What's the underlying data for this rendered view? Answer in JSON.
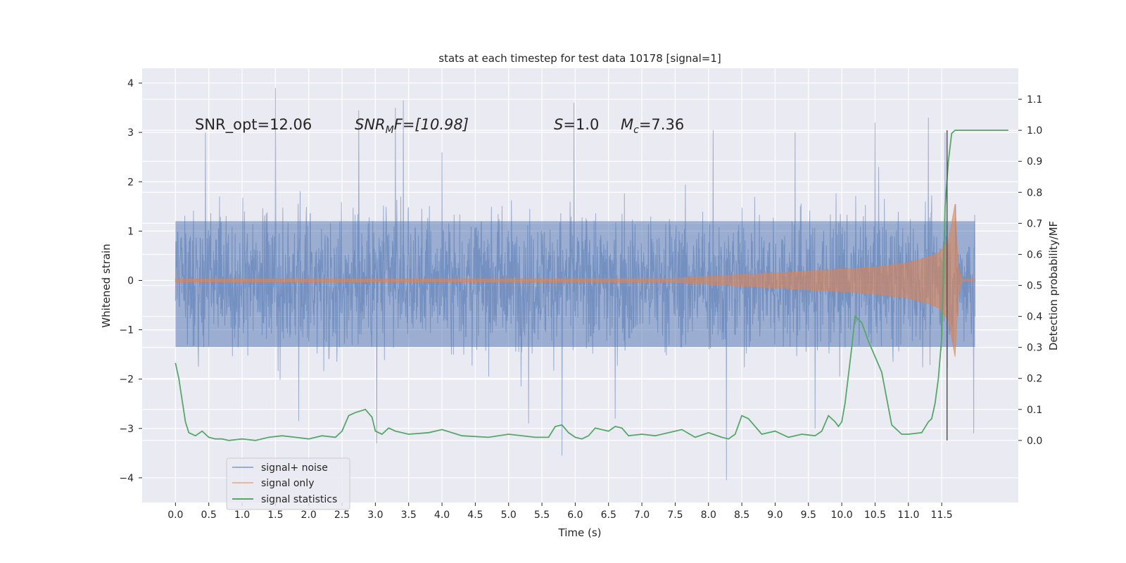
{
  "chart_data": {
    "type": "line",
    "title": "stats at each timestep for test data 10178 [signal=1]",
    "xlabel": "Time (s)",
    "ylabel": "Whitened strain",
    "y2label": "Detection probability/MF",
    "xlim": [
      -0.5,
      12.65
    ],
    "ylim": [
      -4.5,
      4.3
    ],
    "y2lim": [
      -0.2,
      1.2
    ],
    "xticks": [
      0.0,
      0.5,
      1.0,
      1.5,
      2.0,
      2.5,
      3.0,
      3.5,
      4.0,
      4.5,
      5.0,
      5.5,
      6.0,
      6.5,
      7.0,
      7.5,
      8.0,
      8.5,
      9.0,
      9.5,
      10.0,
      10.5,
      11.0,
      11.5
    ],
    "xtick_labels": [
      "0.0",
      "0.5",
      "1.0",
      "1.5",
      "2.0",
      "2.5",
      "3.0",
      "3.5",
      "4.0",
      "4.5",
      "5.0",
      "5.5",
      "6.0",
      "6.5",
      "7.0",
      "7.5",
      "8.0",
      "8.5",
      "9.0",
      "9.5",
      "10.0",
      "10.5",
      "11.0",
      "11.5"
    ],
    "yticks": [
      -4,
      -3,
      -2,
      -1,
      0,
      1,
      2,
      3,
      4
    ],
    "ytick_labels": [
      "−4",
      "−3",
      "−2",
      "−1",
      "0",
      "1",
      "2",
      "3",
      "4"
    ],
    "y2ticks": [
      0.0,
      0.1,
      0.2,
      0.3,
      0.4,
      0.5,
      0.6,
      0.7,
      0.8,
      0.9,
      1.0,
      1.1
    ],
    "y2tick_labels": [
      "0.0",
      "0.1",
      "0.2",
      "0.3",
      "0.4",
      "0.5",
      "0.6",
      "0.7",
      "0.8",
      "0.9",
      "1.0",
      "1.1"
    ],
    "annotations": {
      "snr_opt": "SNR_opt=12.06",
      "snr_mf_main": "SNR",
      "snr_mf_sub": "M",
      "snr_mf_rest": "F=[10.98]",
      "s_symbol": "S",
      "s_value": "=1.0",
      "mc_symbol": "M",
      "mc_sub": "c",
      "mc_value": "=7.36"
    },
    "legend": {
      "location": "lower-left",
      "entries": [
        "signal+ noise",
        "signal only",
        "signal statistics"
      ]
    },
    "series": [
      {
        "name": "signal+ noise",
        "axis": "left",
        "color": "#4c72b0",
        "band_core": [
          -1.35,
          1.2
        ],
        "x_range": [
          0.0,
          12.0
        ],
        "spikes": [
          {
            "t": 1.5,
            "v": 3.9
          },
          {
            "t": 2.75,
            "v": 3.45
          },
          {
            "t": 3.3,
            "v": 3.5
          },
          {
            "t": 3.42,
            "v": 3.65
          },
          {
            "t": 5.98,
            "v": 3.6
          },
          {
            "t": 8.07,
            "v": 3.05
          },
          {
            "t": 9.3,
            "v": 3.0
          },
          {
            "t": 10.5,
            "v": 3.2
          },
          {
            "t": 11.3,
            "v": 3.3
          },
          {
            "t": 11.55,
            "v": 3.0
          },
          {
            "t": 0.45,
            "v": 3.0
          },
          {
            "t": 4.0,
            "v": 2.6
          },
          {
            "t": 5.8,
            "v": -3.55
          },
          {
            "t": 8.27,
            "v": -4.05
          },
          {
            "t": 3.02,
            "v": -3.3
          },
          {
            "t": 9.6,
            "v": -3.0
          },
          {
            "t": 11.98,
            "v": -3.1
          },
          {
            "t": 5.3,
            "v": -2.9
          },
          {
            "t": 6.6,
            "v": -2.8
          },
          {
            "t": 1.85,
            "v": -2.85
          }
        ]
      },
      {
        "name": "signal only",
        "axis": "left",
        "color": "#dd8452",
        "envelope": [
          {
            "t": 0.0,
            "a": 0.03
          },
          {
            "t": 4.0,
            "a": 0.03
          },
          {
            "t": 7.5,
            "a": 0.04
          },
          {
            "t": 8.0,
            "a": 0.08
          },
          {
            "t": 9.0,
            "a": 0.15
          },
          {
            "t": 10.0,
            "a": 0.23
          },
          {
            "t": 10.5,
            "a": 0.27
          },
          {
            "t": 11.0,
            "a": 0.36
          },
          {
            "t": 11.3,
            "a": 0.47
          },
          {
            "t": 11.45,
            "a": 0.55
          },
          {
            "t": 11.6,
            "a": 0.8
          },
          {
            "t": 11.7,
            "a": 1.55
          },
          {
            "t": 11.75,
            "a": 0.3
          },
          {
            "t": 11.8,
            "a": 0.02
          },
          {
            "t": 12.0,
            "a": 0.02
          }
        ]
      },
      {
        "name": "signal statistics",
        "axis": "right",
        "color": "#55a868",
        "x": [
          0.0,
          0.05,
          0.1,
          0.15,
          0.2,
          0.3,
          0.4,
          0.5,
          0.6,
          0.7,
          0.8,
          1.0,
          1.2,
          1.4,
          1.6,
          1.8,
          2.0,
          2.2,
          2.4,
          2.5,
          2.6,
          2.7,
          2.85,
          2.95,
          3.0,
          3.1,
          3.2,
          3.3,
          3.5,
          3.8,
          4.0,
          4.3,
          4.7,
          5.0,
          5.4,
          5.6,
          5.7,
          5.8,
          5.9,
          6.0,
          6.1,
          6.2,
          6.3,
          6.5,
          6.6,
          6.7,
          6.8,
          7.0,
          7.2,
          7.5,
          7.6,
          7.8,
          8.0,
          8.2,
          8.3,
          8.4,
          8.5,
          8.6,
          8.8,
          9.0,
          9.2,
          9.4,
          9.6,
          9.7,
          9.8,
          9.9,
          9.95,
          10.0,
          10.05,
          10.15,
          10.2,
          10.3,
          10.4,
          10.6,
          10.75,
          10.9,
          11.0,
          11.2,
          11.3,
          11.35,
          11.4,
          11.45,
          11.5,
          11.55,
          11.6,
          11.65,
          11.7,
          11.8,
          11.9,
          12.0,
          12.05,
          12.1,
          12.4,
          12.5
        ],
        "values": [
          0.25,
          0.2,
          0.13,
          0.06,
          0.025,
          0.015,
          0.03,
          0.01,
          0.005,
          0.005,
          0.0,
          0.005,
          0.0,
          0.01,
          0.015,
          0.01,
          0.005,
          0.015,
          0.01,
          0.03,
          0.08,
          0.09,
          0.1,
          0.075,
          0.03,
          0.02,
          0.04,
          0.03,
          0.02,
          0.025,
          0.035,
          0.015,
          0.01,
          0.02,
          0.01,
          0.01,
          0.045,
          0.05,
          0.025,
          0.01,
          0.005,
          0.015,
          0.04,
          0.03,
          0.045,
          0.04,
          0.015,
          0.02,
          0.015,
          0.03,
          0.035,
          0.01,
          0.025,
          0.01,
          0.005,
          0.02,
          0.08,
          0.07,
          0.02,
          0.03,
          0.01,
          0.02,
          0.015,
          0.03,
          0.08,
          0.06,
          0.045,
          0.06,
          0.12,
          0.3,
          0.4,
          0.38,
          0.32,
          0.22,
          0.05,
          0.02,
          0.02,
          0.025,
          0.06,
          0.07,
          0.12,
          0.2,
          0.33,
          0.75,
          0.9,
          0.99,
          1.0,
          1.0,
          1.0,
          1.0,
          1.0,
          1.0,
          1.0,
          1.0
        ]
      }
    ],
    "vertical_marker": {
      "t": 11.58,
      "y2_from": 0.0,
      "y2_to": 1.0,
      "color": "#555555"
    }
  }
}
